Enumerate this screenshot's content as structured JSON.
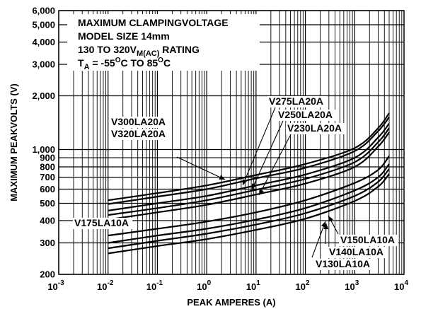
{
  "chart_data": {
    "type": "line",
    "x_scale": "log",
    "y_scale": "log",
    "xlim": [
      0.001,
      10000
    ],
    "ylim": [
      200,
      6000
    ],
    "xlabel": "PEAK AMPERES (A)",
    "ylabel": "MAXIMUM PEAKVOLTS (V)",
    "x_ticks": [
      {
        "base": "10",
        "exp": "-3"
      },
      {
        "base": "10",
        "exp": "-2"
      },
      {
        "base": "10",
        "exp": "-1"
      },
      {
        "base": "10",
        "exp": "0"
      },
      {
        "base": "10",
        "exp": "1"
      },
      {
        "base": "10",
        "exp": "2"
      },
      {
        "base": "10",
        "exp": "3"
      },
      {
        "base": "10",
        "exp": "4"
      }
    ],
    "y_ticks": [
      {
        "value": 200,
        "label": "200"
      },
      {
        "value": 300,
        "label": "300"
      },
      {
        "value": 400,
        "label": "400"
      },
      {
        "value": 500,
        "label": "500"
      },
      {
        "value": 600,
        "label": "600"
      },
      {
        "value": 700,
        "label": "700"
      },
      {
        "value": 800,
        "label": "800"
      },
      {
        "value": 900,
        "label": "900"
      },
      {
        "value": 1000,
        "label": "1,000"
      },
      {
        "value": 2000,
        "label": "2,000"
      },
      {
        "value": 3000,
        "label": "3,000"
      },
      {
        "value": 4000,
        "label": "4,000"
      },
      {
        "value": 5000,
        "label": "5,000"
      },
      {
        "value": 6000,
        "label": "6,000"
      }
    ],
    "grid": true,
    "note_lines": [
      "MAXIMUM CLAMPINGVOLTAGE",
      "MODEL SIZE 14mm",
      {
        "pre": "130 TO 320V",
        "sub": "M(AC)",
        "post": " RATING"
      },
      {
        "a": "T",
        "a_sub": "A",
        "b": " = -55",
        "b_sup": "O",
        "c": "C TO 85",
        "c_sup": "O",
        "d": "C"
      }
    ],
    "series": [
      {
        "name": "V320LA20A",
        "x": [
          0.01,
          0.1,
          1,
          10,
          100,
          1000,
          3000,
          5000
        ],
        "y": [
          520,
          570,
          630,
          720,
          830,
          1020,
          1320,
          1600
        ]
      },
      {
        "name": "V300LA20A",
        "x": [
          0.01,
          0.1,
          1,
          10,
          100,
          1000,
          3000,
          5000
        ],
        "y": [
          495,
          545,
          600,
          690,
          790,
          980,
          1270,
          1520
        ]
      },
      {
        "name": "V275LA20A",
        "x": [
          0.01,
          0.1,
          1,
          10,
          100,
          1000,
          3000,
          5000
        ],
        "y": [
          455,
          500,
          550,
          630,
          725,
          900,
          1170,
          1400
        ]
      },
      {
        "name": "V250LA20A",
        "x": [
          0.01,
          0.1,
          1,
          10,
          100,
          1000,
          3000,
          5000
        ],
        "y": [
          430,
          470,
          520,
          595,
          685,
          850,
          1100,
          1320
        ]
      },
      {
        "name": "V230LA20A",
        "x": [
          0.01,
          0.1,
          1,
          10,
          100,
          1000,
          3000,
          5000
        ],
        "y": [
          405,
          445,
          490,
          560,
          645,
          800,
          1040,
          1250
        ]
      },
      {
        "name": "V175LA10A",
        "x": [
          0.01,
          0.1,
          1,
          10,
          100,
          1000,
          3000,
          5000
        ],
        "y": [
          330,
          360,
          395,
          445,
          520,
          650,
          770,
          920
        ]
      },
      {
        "name": "V150LA10A",
        "x": [
          0.01,
          0.1,
          1,
          10,
          100,
          1000,
          3000,
          5000
        ],
        "y": [
          300,
          330,
          360,
          405,
          470,
          590,
          700,
          830
        ]
      },
      {
        "name": "V140LA10A",
        "x": [
          0.01,
          0.1,
          1,
          10,
          100,
          1000,
          3000,
          5000
        ],
        "y": [
          280,
          308,
          338,
          380,
          440,
          550,
          660,
          780
        ]
      },
      {
        "name": "V130LA10A",
        "x": [
          0.01,
          0.1,
          1,
          10,
          100,
          1000,
          3000,
          5000
        ],
        "y": [
          262,
          288,
          315,
          355,
          410,
          515,
          620,
          730
        ]
      }
    ]
  }
}
